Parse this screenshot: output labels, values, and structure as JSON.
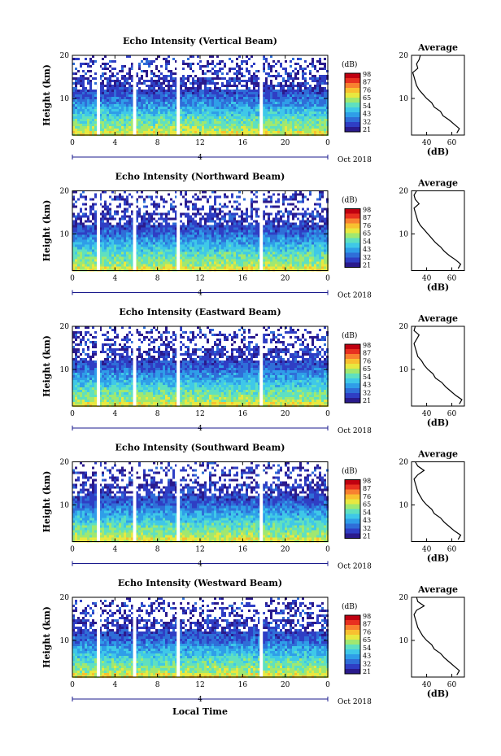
{
  "colors": {
    "colormap": [
      "#2a1a8c",
      "#2f3ec4",
      "#2f6ed8",
      "#2f9ee8",
      "#3fc8e8",
      "#5fe0c0",
      "#a0e870",
      "#e8e840",
      "#f8c030",
      "#f88030",
      "#e83020",
      "#c00010"
    ],
    "axis": "#000000",
    "day_marker": "#1a1a8c",
    "gap": "#ffffff"
  },
  "shared": {
    "x_ticks": [
      "0",
      "4",
      "8",
      "12",
      "16",
      "20",
      "0"
    ],
    "x_range": [
      0,
      24
    ],
    "y_ticks": [
      "10",
      "20"
    ],
    "y_range": [
      1.5,
      20
    ],
    "ylabel": "Height (km)",
    "day_label": "4",
    "month_label": "Oct 2018",
    "xlabel": "Local Time",
    "cbar_unit": "(dB)",
    "cbar_ticks": [
      "21",
      "32",
      "43",
      "54",
      "65",
      "76",
      "87",
      "98"
    ],
    "avg_title": "Average",
    "avg_x_ticks": [
      "40",
      "60"
    ],
    "avg_xlabel": "(dB)",
    "data_gaps_hours": [
      [
        2.3,
        2.6
      ],
      [
        5.7,
        6.0
      ],
      [
        9.8,
        10.1
      ],
      [
        17.6,
        17.9
      ]
    ]
  },
  "chart_data": [
    {
      "type": "heatmap",
      "title": "Echo Intensity (Vertical Beam)",
      "xlabel": "Local Time",
      "ylabel": "Height (km)",
      "xlim": [
        0,
        24
      ],
      "ylim": [
        1.5,
        20
      ],
      "colorbar": {
        "label": "(dB)",
        "ticks": [
          21,
          32,
          43,
          54,
          65,
          76,
          87,
          98
        ]
      },
      "average_profile": {
        "title": "Average",
        "xlabel": "(dB)",
        "xlim": [
          28,
          70
        ],
        "ylim": [
          1.5,
          20
        ],
        "height_km": [
          2,
          3,
          4,
          5,
          6,
          7,
          8,
          9,
          10,
          11,
          12,
          13,
          14,
          15,
          16,
          17,
          18,
          19,
          20
        ],
        "db": [
          64,
          66,
          62,
          58,
          53,
          51,
          46,
          44,
          40,
          37,
          34,
          32,
          31,
          30,
          29,
          33,
          32,
          34,
          35
        ]
      }
    },
    {
      "type": "heatmap",
      "title": "Echo Intensity (Northward Beam)",
      "xlabel": "Local Time",
      "ylabel": "Height (km)",
      "xlim": [
        0,
        24
      ],
      "ylim": [
        1.5,
        20
      ],
      "colorbar": {
        "label": "(dB)",
        "ticks": [
          21,
          32,
          43,
          54,
          65,
          76,
          87,
          98
        ]
      },
      "average_profile": {
        "title": "Average",
        "xlabel": "(dB)",
        "xlim": [
          28,
          70
        ],
        "ylim": [
          1.5,
          20
        ],
        "height_km": [
          2,
          3,
          4,
          5,
          6,
          7,
          8,
          9,
          10,
          11,
          12,
          13,
          14,
          15,
          16,
          17,
          18,
          19,
          20
        ],
        "db": [
          65,
          67,
          63,
          58,
          54,
          51,
          47,
          44,
          41,
          38,
          35,
          33,
          32,
          31,
          30,
          34,
          31,
          30,
          32
        ]
      }
    },
    {
      "type": "heatmap",
      "title": "Echo Intensity (Eastward Beam)",
      "xlabel": "Local Time",
      "ylabel": "Height (km)",
      "xlim": [
        0,
        24
      ],
      "ylim": [
        1.5,
        20
      ],
      "colorbar": {
        "label": "(dB)",
        "ticks": [
          21,
          32,
          43,
          54,
          65,
          76,
          87,
          98
        ]
      },
      "average_profile": {
        "title": "Average",
        "xlabel": "(dB)",
        "xlim": [
          28,
          70
        ],
        "ylim": [
          1.5,
          20
        ],
        "height_km": [
          2,
          3,
          4,
          5,
          6,
          7,
          8,
          9,
          10,
          11,
          12,
          13,
          14,
          15,
          16,
          17,
          18,
          19,
          20
        ],
        "db": [
          66,
          68,
          63,
          59,
          55,
          52,
          47,
          45,
          41,
          38,
          36,
          33,
          32,
          31,
          30,
          32,
          34,
          30,
          31
        ]
      }
    },
    {
      "type": "heatmap",
      "title": "Echo Intensity (Southward Beam)",
      "xlabel": "Local Time",
      "ylabel": "Height (km)",
      "xlim": [
        0,
        24
      ],
      "ylim": [
        1.5,
        20
      ],
      "colorbar": {
        "label": "(dB)",
        "ticks": [
          21,
          32,
          43,
          54,
          65,
          76,
          87,
          98
        ]
      },
      "average_profile": {
        "title": "Average",
        "xlabel": "(dB)",
        "xlim": [
          28,
          70
        ],
        "ylim": [
          1.5,
          20
        ],
        "height_km": [
          2,
          3,
          4,
          5,
          6,
          7,
          8,
          9,
          10,
          11,
          12,
          13,
          14,
          15,
          16,
          17,
          18,
          19,
          20
        ],
        "db": [
          65,
          67,
          62,
          58,
          54,
          51,
          46,
          44,
          40,
          37,
          35,
          33,
          32,
          31,
          30,
          33,
          38,
          33,
          31
        ]
      }
    },
    {
      "type": "heatmap",
      "title": "Echo Intensity (Westward Beam)",
      "xlabel": "Local Time",
      "ylabel": "Height (km)",
      "xlim": [
        0,
        24
      ],
      "ylim": [
        1.5,
        20
      ],
      "colorbar": {
        "label": "(dB)",
        "ticks": [
          21,
          32,
          43,
          54,
          65,
          76,
          87,
          98
        ]
      },
      "average_profile": {
        "title": "Average",
        "xlabel": "(dB)",
        "xlim": [
          28,
          70
        ],
        "ylim": [
          1.5,
          20
        ],
        "height_km": [
          2,
          3,
          4,
          5,
          6,
          7,
          8,
          9,
          10,
          11,
          12,
          13,
          14,
          15,
          16,
          17,
          18,
          19,
          20
        ],
        "db": [
          64,
          66,
          62,
          58,
          54,
          51,
          46,
          44,
          40,
          37,
          35,
          33,
          32,
          31,
          30,
          32,
          38,
          33,
          32
        ]
      }
    }
  ]
}
